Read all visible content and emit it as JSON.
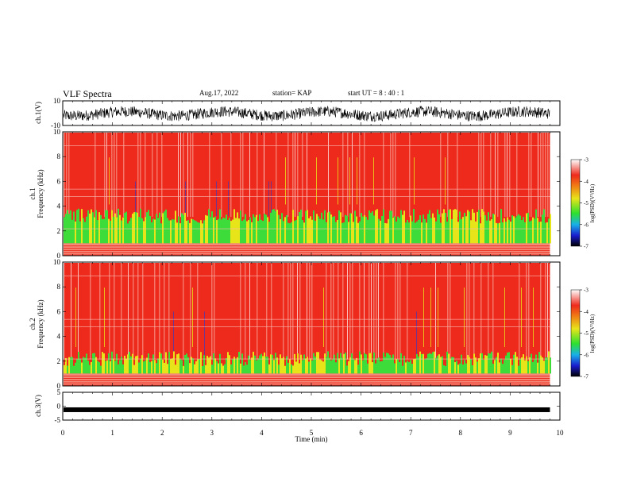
{
  "header": {
    "title": "VLF Spectra",
    "date": "Aug.17, 2022",
    "station": "station= KAP",
    "start": "start  UT  =   8  : 40 : 1"
  },
  "colors": {
    "spectrogram_hot": "#ee2a1c",
    "spectrogram_light": "#f48a7c",
    "spectrogram_yellow": "#e8e41a",
    "spectrogram_green": "#3ddc3a",
    "spectrogram_blue": "#1a3cd8",
    "waveform": "#000000"
  },
  "chart_data": [
    {
      "type": "line",
      "panel": "ch1-waveform",
      "ylabel": "ch.1(V)",
      "yticks": [
        "10",
        "-10"
      ],
      "ylim": [
        -10,
        10
      ],
      "description_values": "noisy waveform oscillating roughly between -7 and 6 V",
      "x_range_min": [
        0,
        9.8
      ]
    },
    {
      "type": "heatmap",
      "panel": "ch1-spectrogram",
      "ylabel": "ch.1 Frequency (kHz)",
      "yticks": [
        "0",
        "2",
        "4",
        "6",
        "8",
        "10"
      ],
      "ylim": [
        0,
        10
      ],
      "x_range_min": [
        0,
        9.8
      ],
      "colorbar": {
        "label": "log(PSD)(V²/Hz)",
        "ticks": [
          "-3",
          "-4",
          "-5",
          "-6",
          "-7"
        ],
        "range": [
          -7,
          -3
        ]
      }
    },
    {
      "type": "heatmap",
      "panel": "ch2-spectrogram",
      "ylabel": "ch.2 Frequency (kHz)",
      "yticks": [
        "0",
        "2",
        "4",
        "6",
        "8",
        "10"
      ],
      "ylim": [
        0,
        10
      ],
      "x_range_min": [
        0,
        9.8
      ],
      "colorbar": {
        "label": "log(PSD)(V²/Hz)",
        "ticks": [
          "-3",
          "-4",
          "-5",
          "-6",
          "-7"
        ],
        "range": [
          -7,
          -3
        ]
      }
    },
    {
      "type": "line",
      "panel": "ch3-waveform",
      "ylabel": "ch.3(V)",
      "yticks": [
        "5",
        "0",
        "-5"
      ],
      "ylim": [
        -5,
        5
      ],
      "value_approx": -1.5,
      "x_range_min": [
        0,
        9.8
      ]
    }
  ],
  "xaxis": {
    "label": "Time  (min)",
    "ticks": [
      "0",
      "1",
      "2",
      "3",
      "4",
      "5",
      "6",
      "7",
      "8",
      "9",
      "10"
    ],
    "xlim": [
      0,
      10
    ]
  }
}
